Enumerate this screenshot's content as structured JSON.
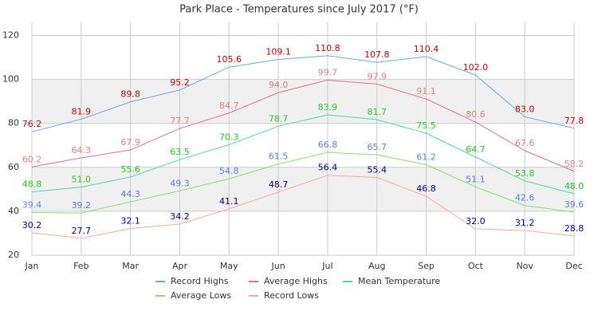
{
  "chart_data": {
    "type": "line",
    "title": "Park Place - Temperatures since July 2017 (°F)",
    "categories": [
      "Jan",
      "Feb",
      "Mar",
      "Apr",
      "May",
      "Jun",
      "Jul",
      "Aug",
      "Sep",
      "Oct",
      "Nov",
      "Dec"
    ],
    "ylim": [
      20,
      126
    ],
    "yticks": [
      20,
      40,
      60,
      80,
      100,
      120
    ],
    "grid": true,
    "series": [
      {
        "name": "Record Highs",
        "color": "#6fa8dc",
        "label_color": "#cc0000",
        "values": [
          76.2,
          81.9,
          89.8,
          95.2,
          105.6,
          109.1,
          110.8,
          107.8,
          110.4,
          102.0,
          83.0,
          77.8
        ],
        "value_labels": [
          "76.2",
          "81.9",
          "89.8",
          "95.2",
          "105.6",
          "109.1",
          "110.8",
          "107.8",
          "110.4",
          "102.0",
          "83.0",
          "77.8"
        ]
      },
      {
        "name": "Average Highs",
        "color": "#e0708e",
        "label_color": "#e88080",
        "values": [
          60.2,
          64.3,
          67.9,
          77.7,
          84.7,
          94.0,
          99.7,
          97.9,
          91.1,
          80.6,
          67.6,
          58.2
        ],
        "value_labels": [
          "60.2",
          "64.3",
          "67.9",
          "77.7",
          "84.7",
          "94.0",
          "99.7",
          "97.9",
          "91.1",
          "80.6",
          "67.6",
          "58.2"
        ]
      },
      {
        "name": "Mean Temperature",
        "color": "#4fd8a8",
        "label_color": "#22cc22",
        "values": [
          48.8,
          51.0,
          55.6,
          63.5,
          70.3,
          78.7,
          83.9,
          81.7,
          75.5,
          64.7,
          53.8,
          48.0
        ],
        "value_labels": [
          "48.8",
          "51.0",
          "55.6",
          "63.5",
          "70.3",
          "78.7",
          "83.9",
          "81.7",
          "75.5",
          "64.7",
          "53.8",
          "48.0"
        ]
      },
      {
        "name": "Average Lows",
        "color": "#88e070",
        "label_color": "#5b80dd",
        "values": [
          39.4,
          39.2,
          44.3,
          49.3,
          54.8,
          61.5,
          66.8,
          65.7,
          61.2,
          51.1,
          42.6,
          39.6
        ],
        "value_labels": [
          "39.4",
          "39.2",
          "44.3",
          "49.3",
          "54.8",
          "61.5",
          "66.8",
          "65.7",
          "61.2",
          "51.1",
          "42.6",
          "39.6"
        ]
      },
      {
        "name": "Record Lows",
        "color": "#f4b0a0",
        "label_color": "#0000aa",
        "values": [
          30.2,
          27.7,
          32.1,
          34.2,
          41.1,
          48.7,
          56.4,
          55.4,
          46.8,
          32.0,
          31.2,
          28.8
        ],
        "value_labels": [
          "30.2",
          "27.7",
          "32.1",
          "34.2",
          "41.1",
          "48.7",
          "56.4",
          "55.4",
          "46.8",
          "32.0",
          "31.2",
          "28.8"
        ]
      }
    ]
  }
}
